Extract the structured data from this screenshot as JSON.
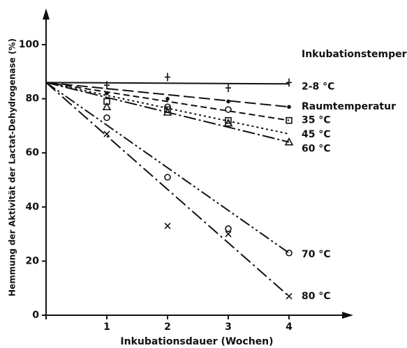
{
  "chart_data": {
    "type": "line",
    "xlabel": "Inkubationsdauer (Wochen)",
    "ylabel": "Hemmung der Aktivität der Lactat-Dehydrogenase (%)",
    "annotation": "Inkubationstemperatur",
    "x": [
      1,
      2,
      3,
      4
    ],
    "fit_x": [
      0,
      4
    ],
    "xlim": [
      0,
      4.8
    ],
    "ylim": [
      0,
      108
    ],
    "xticks": [
      1,
      2,
      3,
      4
    ],
    "yticks": [
      0,
      20,
      40,
      60,
      80,
      100
    ],
    "series": [
      {
        "name": "2-8 °C",
        "color": "#111111",
        "marker": "plus",
        "dash": "none",
        "values": [
          85,
          88,
          84,
          86
        ],
        "fit_values": [
          86,
          85.5
        ]
      },
      {
        "name": "Raumtemperatur",
        "color": "#111111",
        "marker": "dot",
        "dash": "16 6",
        "values": [
          82,
          80,
          79,
          77
        ],
        "fit_values": [
          86,
          77
        ]
      },
      {
        "name": "35 °C",
        "color": "#111111",
        "marker": "square",
        "dash": "9 5",
        "values": [
          79,
          76,
          72,
          72
        ],
        "fit_values": [
          86,
          72
        ]
      },
      {
        "name": "45 °C",
        "color": "#111111",
        "marker": "circle",
        "dash": "3 4",
        "values": [
          null,
          77,
          76,
          null
        ],
        "fit_values": [
          86,
          67
        ]
      },
      {
        "name": "60 °C",
        "color": "#111111",
        "marker": "triangle",
        "dash": "18 4 3 4",
        "values": [
          77,
          75,
          71,
          64
        ],
        "fit_values": [
          86,
          64
        ]
      },
      {
        "name": "70 °C",
        "color": "#111111",
        "marker": "circle",
        "dash": "16 4 3 4 3 4",
        "values": [
          73,
          51,
          32,
          23
        ],
        "fit_values": [
          86,
          23
        ]
      },
      {
        "name": "80 °C",
        "color": "#111111",
        "marker": "x",
        "dash": "18 5 3 5",
        "values": [
          67,
          33,
          30,
          7
        ],
        "fit_values": [
          86,
          7
        ]
      }
    ]
  }
}
